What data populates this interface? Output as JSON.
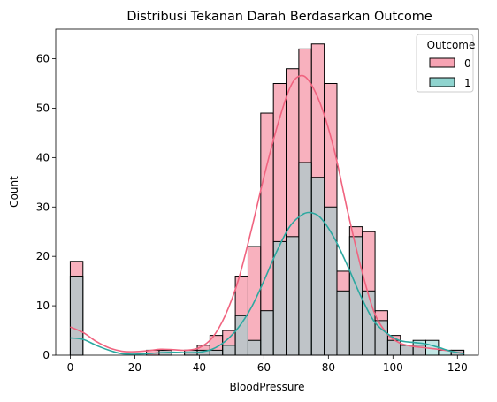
{
  "chart_data": {
    "type": "histogram",
    "title": "Distribusi Tekanan Darah Berdasarkan Outcome",
    "xlabel": "BloodPressure",
    "ylabel": "Count",
    "xlim": [
      -4.5,
      126.5
    ],
    "ylim": [
      0,
      66
    ],
    "x_ticks": [
      0,
      20,
      40,
      60,
      80,
      100,
      120
    ],
    "y_ticks": [
      0,
      10,
      20,
      30,
      40,
      50,
      60
    ],
    "bin_edges": [
      0,
      3.9355,
      7.871,
      11.8065,
      15.742,
      19.6775,
      23.613,
      27.5485,
      31.484,
      35.4195,
      39.355,
      43.2905,
      47.226,
      51.1615,
      55.097,
      59.0325,
      62.968,
      66.9035,
      70.839,
      74.7745,
      78.71,
      82.6455,
      86.581,
      90.5165,
      94.452,
      98.3875,
      102.323,
      106.2585,
      110.194,
      114.1295,
      118.065,
      122
    ],
    "legend": {
      "title": "Outcome",
      "position": "upper right"
    },
    "series": [
      {
        "name": "0",
        "color": "#f0637f",
        "fill": "#f7a3b3",
        "counts": [
          19,
          0,
          0,
          0,
          0,
          0,
          1,
          1,
          0,
          1,
          2,
          4,
          5,
          16,
          22,
          49,
          55,
          58,
          62,
          63,
          55,
          17,
          26,
          25,
          9,
          4,
          2,
          2,
          0,
          0,
          1
        ],
        "kde": [
          [
            0,
            5.7
          ],
          [
            4,
            4.6
          ],
          [
            8,
            2.8
          ],
          [
            12,
            1.5
          ],
          [
            16,
            0.8
          ],
          [
            20,
            0.7
          ],
          [
            24,
            0.9
          ],
          [
            28,
            1.2
          ],
          [
            32,
            1.1
          ],
          [
            36,
            1.0
          ],
          [
            40,
            1.5
          ],
          [
            44,
            3.5
          ],
          [
            48,
            8.0
          ],
          [
            52,
            15.0
          ],
          [
            56,
            25.0
          ],
          [
            60,
            36.0
          ],
          [
            64,
            46.0
          ],
          [
            68,
            54.0
          ],
          [
            71,
            56.5
          ],
          [
            74,
            55.5
          ],
          [
            78,
            50.0
          ],
          [
            82,
            41.0
          ],
          [
            86,
            29.0
          ],
          [
            90,
            18.0
          ],
          [
            94,
            9.0
          ],
          [
            98,
            4.5
          ],
          [
            102,
            2.5
          ],
          [
            106,
            1.8
          ],
          [
            110,
            1.5
          ],
          [
            114,
            1.2
          ],
          [
            118,
            0.8
          ],
          [
            122,
            0.4
          ]
        ]
      },
      {
        "name": "1",
        "color": "#2ba8a0",
        "fill": "#8fd4cf",
        "counts": [
          16,
          0,
          0,
          0,
          0,
          0,
          0,
          1,
          0,
          1,
          1,
          1,
          2,
          8,
          3,
          9,
          23,
          24,
          39,
          36,
          30,
          13,
          24,
          13,
          7,
          3,
          2,
          3,
          3,
          1,
          1
        ],
        "kde": [
          [
            0,
            3.5
          ],
          [
            4,
            3.2
          ],
          [
            8,
            2.0
          ],
          [
            12,
            1.0
          ],
          [
            16,
            0.3
          ],
          [
            20,
            0.2
          ],
          [
            24,
            0.3
          ],
          [
            28,
            0.5
          ],
          [
            32,
            0.6
          ],
          [
            36,
            0.5
          ],
          [
            40,
            0.6
          ],
          [
            44,
            1.2
          ],
          [
            48,
            2.8
          ],
          [
            52,
            5.5
          ],
          [
            56,
            9.5
          ],
          [
            60,
            15.0
          ],
          [
            64,
            21.0
          ],
          [
            68,
            26.0
          ],
          [
            72,
            28.5
          ],
          [
            75,
            28.8
          ],
          [
            78,
            27.5
          ],
          [
            82,
            23.5
          ],
          [
            86,
            18.0
          ],
          [
            90,
            12.0
          ],
          [
            94,
            7.0
          ],
          [
            98,
            4.5
          ],
          [
            102,
            3.0
          ],
          [
            106,
            2.6
          ],
          [
            110,
            2.3
          ],
          [
            114,
            1.6
          ],
          [
            118,
            0.8
          ],
          [
            122,
            0.3
          ]
        ]
      }
    ]
  }
}
